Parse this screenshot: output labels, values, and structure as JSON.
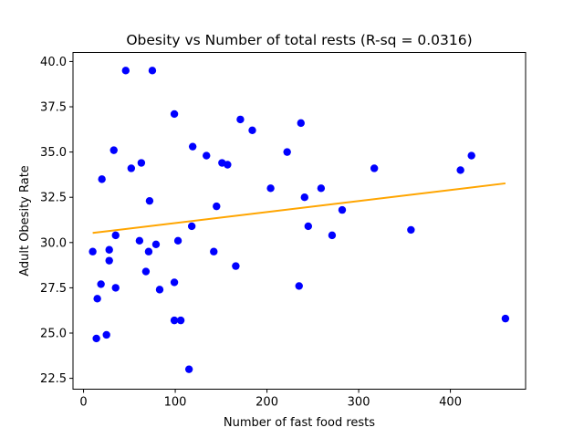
{
  "chart_data": {
    "type": "scatter",
    "title": "Obesity vs Number of total rests (R-sq = 0.0316)",
    "xlabel": "Number of fast food rests",
    "ylabel": "Adult Obesity Rate",
    "xlim": [
      -11.5,
      482
    ],
    "ylim": [
      21.9,
      40.5
    ],
    "xticks": [
      0,
      100,
      200,
      300,
      400
    ],
    "xtick_labels": [
      "0",
      "100",
      "200",
      "300",
      "400"
    ],
    "yticks": [
      22.5,
      25.0,
      27.5,
      30.0,
      32.5,
      35.0,
      37.5,
      40.0
    ],
    "ytick_labels": [
      "22.5",
      "25.0",
      "27.5",
      "30.0",
      "32.5",
      "35.0",
      "37.5",
      "40.0"
    ],
    "grid": false,
    "point_color": "#0000ff",
    "line_color": "#ffa500",
    "points": [
      {
        "x": 10,
        "y": 29.5
      },
      {
        "x": 14,
        "y": 24.7
      },
      {
        "x": 15,
        "y": 26.9
      },
      {
        "x": 19,
        "y": 27.7
      },
      {
        "x": 20,
        "y": 33.5
      },
      {
        "x": 25,
        "y": 24.9
      },
      {
        "x": 28,
        "y": 29.6
      },
      {
        "x": 28,
        "y": 29.0
      },
      {
        "x": 33,
        "y": 35.1
      },
      {
        "x": 35,
        "y": 27.5
      },
      {
        "x": 35,
        "y": 30.4
      },
      {
        "x": 46,
        "y": 39.5
      },
      {
        "x": 52,
        "y": 34.1
      },
      {
        "x": 61,
        "y": 30.1
      },
      {
        "x": 63,
        "y": 34.4
      },
      {
        "x": 68,
        "y": 28.4
      },
      {
        "x": 71,
        "y": 29.5
      },
      {
        "x": 72,
        "y": 32.3
      },
      {
        "x": 75,
        "y": 39.5
      },
      {
        "x": 79,
        "y": 29.9
      },
      {
        "x": 83,
        "y": 27.4
      },
      {
        "x": 99,
        "y": 37.1
      },
      {
        "x": 99,
        "y": 27.8
      },
      {
        "x": 99,
        "y": 25.7
      },
      {
        "x": 103,
        "y": 30.1
      },
      {
        "x": 106,
        "y": 25.7
      },
      {
        "x": 115,
        "y": 23.0
      },
      {
        "x": 118,
        "y": 30.9
      },
      {
        "x": 119,
        "y": 35.3
      },
      {
        "x": 134,
        "y": 34.8
      },
      {
        "x": 142,
        "y": 29.5
      },
      {
        "x": 145,
        "y": 32.0
      },
      {
        "x": 151,
        "y": 34.4
      },
      {
        "x": 157,
        "y": 34.3
      },
      {
        "x": 166,
        "y": 28.7
      },
      {
        "x": 171,
        "y": 36.8
      },
      {
        "x": 184,
        "y": 36.2
      },
      {
        "x": 204,
        "y": 33.0
      },
      {
        "x": 222,
        "y": 35.0
      },
      {
        "x": 235,
        "y": 27.6
      },
      {
        "x": 237,
        "y": 36.6
      },
      {
        "x": 241,
        "y": 32.5
      },
      {
        "x": 245,
        "y": 30.9
      },
      {
        "x": 259,
        "y": 33.0
      },
      {
        "x": 271,
        "y": 30.4
      },
      {
        "x": 282,
        "y": 31.8
      },
      {
        "x": 317,
        "y": 34.1
      },
      {
        "x": 357,
        "y": 30.7
      },
      {
        "x": 411,
        "y": 34.0
      },
      {
        "x": 423,
        "y": 34.8
      },
      {
        "x": 460,
        "y": 25.8
      }
    ],
    "trendline": {
      "x": [
        10,
        460
      ],
      "y": [
        30.53,
        33.27
      ]
    }
  }
}
